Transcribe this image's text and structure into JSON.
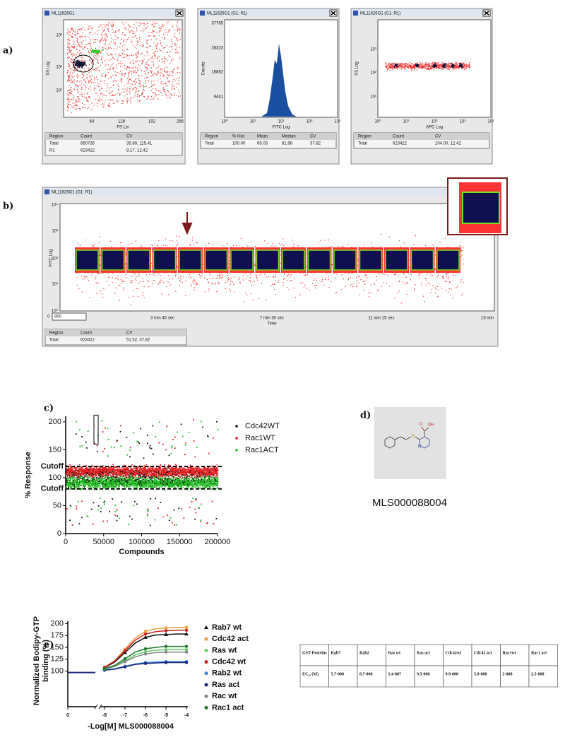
{
  "panel_labels": [
    "a)",
    "b)",
    "c)",
    "d)",
    "e)"
  ],
  "panel_a": {
    "windows": [
      {
        "title": "ML11626G1",
        "x_label": "FS Lin",
        "y_label": "SS Log",
        "y_ticks": [
          "10³",
          "10²",
          "10¹"
        ],
        "x_ticks": [
          "64",
          "128",
          "192",
          "256"
        ],
        "table": {
          "header": [
            "Region",
            "Count",
            "CV"
          ],
          "rows": [
            [
              "Total",
              "650735",
              "35.89, 115.41"
            ],
            [
              "R1",
              "623422",
              "8.17, 12.42"
            ]
          ]
        }
      },
      {
        "title": "ML11626G1 (G1: R1)",
        "x_label": "FITC Log",
        "y_label": "Counts",
        "y_ticks": [
          "37765",
          "28323",
          "18882",
          "9441"
        ],
        "x_ticks": [
          "10⁰",
          "10¹",
          "10²",
          "10³",
          "10⁴"
        ],
        "table": {
          "header": [
            "Region",
            "% Hist",
            "Mean",
            "Median",
            "CV"
          ],
          "rows": [
            [
              "Total",
              "100.00",
              "85.03",
              "81.98",
              "37.82"
            ]
          ]
        }
      },
      {
        "title": "ML11626G1 (G1: R1)",
        "x_label": "APC Log",
        "y_label": "SS Log",
        "y_ticks": [
          "10³",
          "10²",
          "10¹"
        ],
        "x_ticks": [
          "10⁰",
          "10¹",
          "10²",
          "10³",
          "10⁴"
        ],
        "table": {
          "header": [
            "Region",
            "Count",
            "CV"
          ],
          "rows": [
            [
              "Total",
              "623422",
              "104.00, 12.42"
            ]
          ]
        }
      }
    ]
  },
  "panel_b": {
    "title": "ML11626G1 (G1: R1)",
    "y_label": "FITC Log",
    "x_label": "Time",
    "y_ticks": [
      "10⁴",
      "10³",
      "10²",
      "10¹",
      "10⁰"
    ],
    "x_ticks": [
      "3 min 45 sec",
      "7 min 30 sec",
      "11 min 15 sec",
      "15 min"
    ],
    "range": [
      "0",
      "900"
    ],
    "table": {
      "header": [
        "Region",
        "Count",
        "CV"
      ],
      "rows": [
        [
          "Total",
          "623422",
          "51.52, 37.82"
        ]
      ]
    }
  },
  "chart_data": [
    {
      "type": "scatter",
      "xlabel": "Compounds",
      "ylabel": "% Response",
      "xlim": [
        0,
        200000
      ],
      "ylim": [
        0,
        210
      ],
      "xticks": [
        0,
        50000,
        100000,
        150000,
        200000
      ],
      "yticks": [
        0,
        50,
        100,
        150,
        200
      ],
      "series": [
        {
          "name": "Cdc42WT",
          "color": "#111111"
        },
        {
          "name": "Rac1WT",
          "color": "#e02020"
        },
        {
          "name": "Rac1ACT",
          "color": "#22bb22"
        }
      ],
      "cutoffs": [
        {
          "label": "Cutoff",
          "value": 120
        },
        {
          "label": "Cutoff",
          "value": 80
        }
      ]
    },
    {
      "type": "line",
      "xlabel": "-Log[M] MLS000088004",
      "ylabel": [
        "Normalized Bodipy-GTP",
        "binding (%)"
      ],
      "xlim": [
        -8,
        -4
      ],
      "ylim": [
        25,
        205
      ],
      "xticks": [
        0,
        -8,
        -7,
        -6,
        -5,
        -4
      ],
      "yticks": [
        100,
        125,
        150,
        175,
        200
      ],
      "x": [
        -8,
        -7.5,
        -7,
        -6.5,
        -6,
        -5.5,
        -5,
        -4.5,
        -4
      ],
      "series": [
        {
          "name": "Rab7 wt",
          "color": "#111111",
          "marker": "triangle",
          "values": [
            107,
            119,
            139,
            159,
            171,
            176,
            177,
            178,
            178
          ]
        },
        {
          "name": "Cdc42 act",
          "color": "#e8a040",
          "marker": "circle",
          "values": [
            108,
            122,
            146,
            170,
            184,
            189,
            191,
            192,
            192
          ]
        },
        {
          "name": "Ras wt",
          "color": "#66cc66",
          "marker": "circle",
          "values": [
            104,
            111,
            122,
            134,
            141,
            144,
            145,
            145,
            145
          ]
        },
        {
          "name": "Cdc42 wt",
          "color": "#cc2222",
          "marker": "circle",
          "values": [
            108,
            121,
            143,
            165,
            178,
            183,
            185,
            186,
            186
          ]
        },
        {
          "name": "Rab2 wt",
          "color": "#3388dd",
          "marker": "circle",
          "values": [
            102,
            105,
            110,
            115,
            118,
            119,
            120,
            120,
            120
          ]
        },
        {
          "name": "Ras act",
          "color": "#1a237e",
          "marker": "circle",
          "values": [
            102,
            104,
            109,
            114,
            116,
            117,
            118,
            118,
            118
          ]
        },
        {
          "name": "Rac wt",
          "color": "#888888",
          "marker": "circle",
          "values": [
            104,
            110,
            120,
            130,
            136,
            139,
            140,
            140,
            140
          ]
        },
        {
          "name": "Rac1 act",
          "color": "#1b7a2b",
          "marker": "circle",
          "values": [
            105,
            112,
            126,
            140,
            147,
            150,
            152,
            152,
            152
          ]
        }
      ]
    }
  ],
  "panel_d": {
    "compound": "MLS000088004",
    "atoms": [
      "S",
      "N",
      "O",
      "OH"
    ]
  },
  "panel_e_table": {
    "header": [
      "GST-Proteins",
      "Rab7",
      "Rab2",
      "Ras wt",
      "Ras act",
      "Cdc42wt",
      "Cdc42 act",
      "Rac1wt",
      "Rac1 act"
    ],
    "rows": [
      [
        "EC₅₀ (M)",
        "5.7-008",
        "8.7-008",
        "1.4-007",
        "9.5-008",
        "9.9-008",
        "5.9-008",
        "2-008",
        "2.5-008"
      ]
    ]
  }
}
